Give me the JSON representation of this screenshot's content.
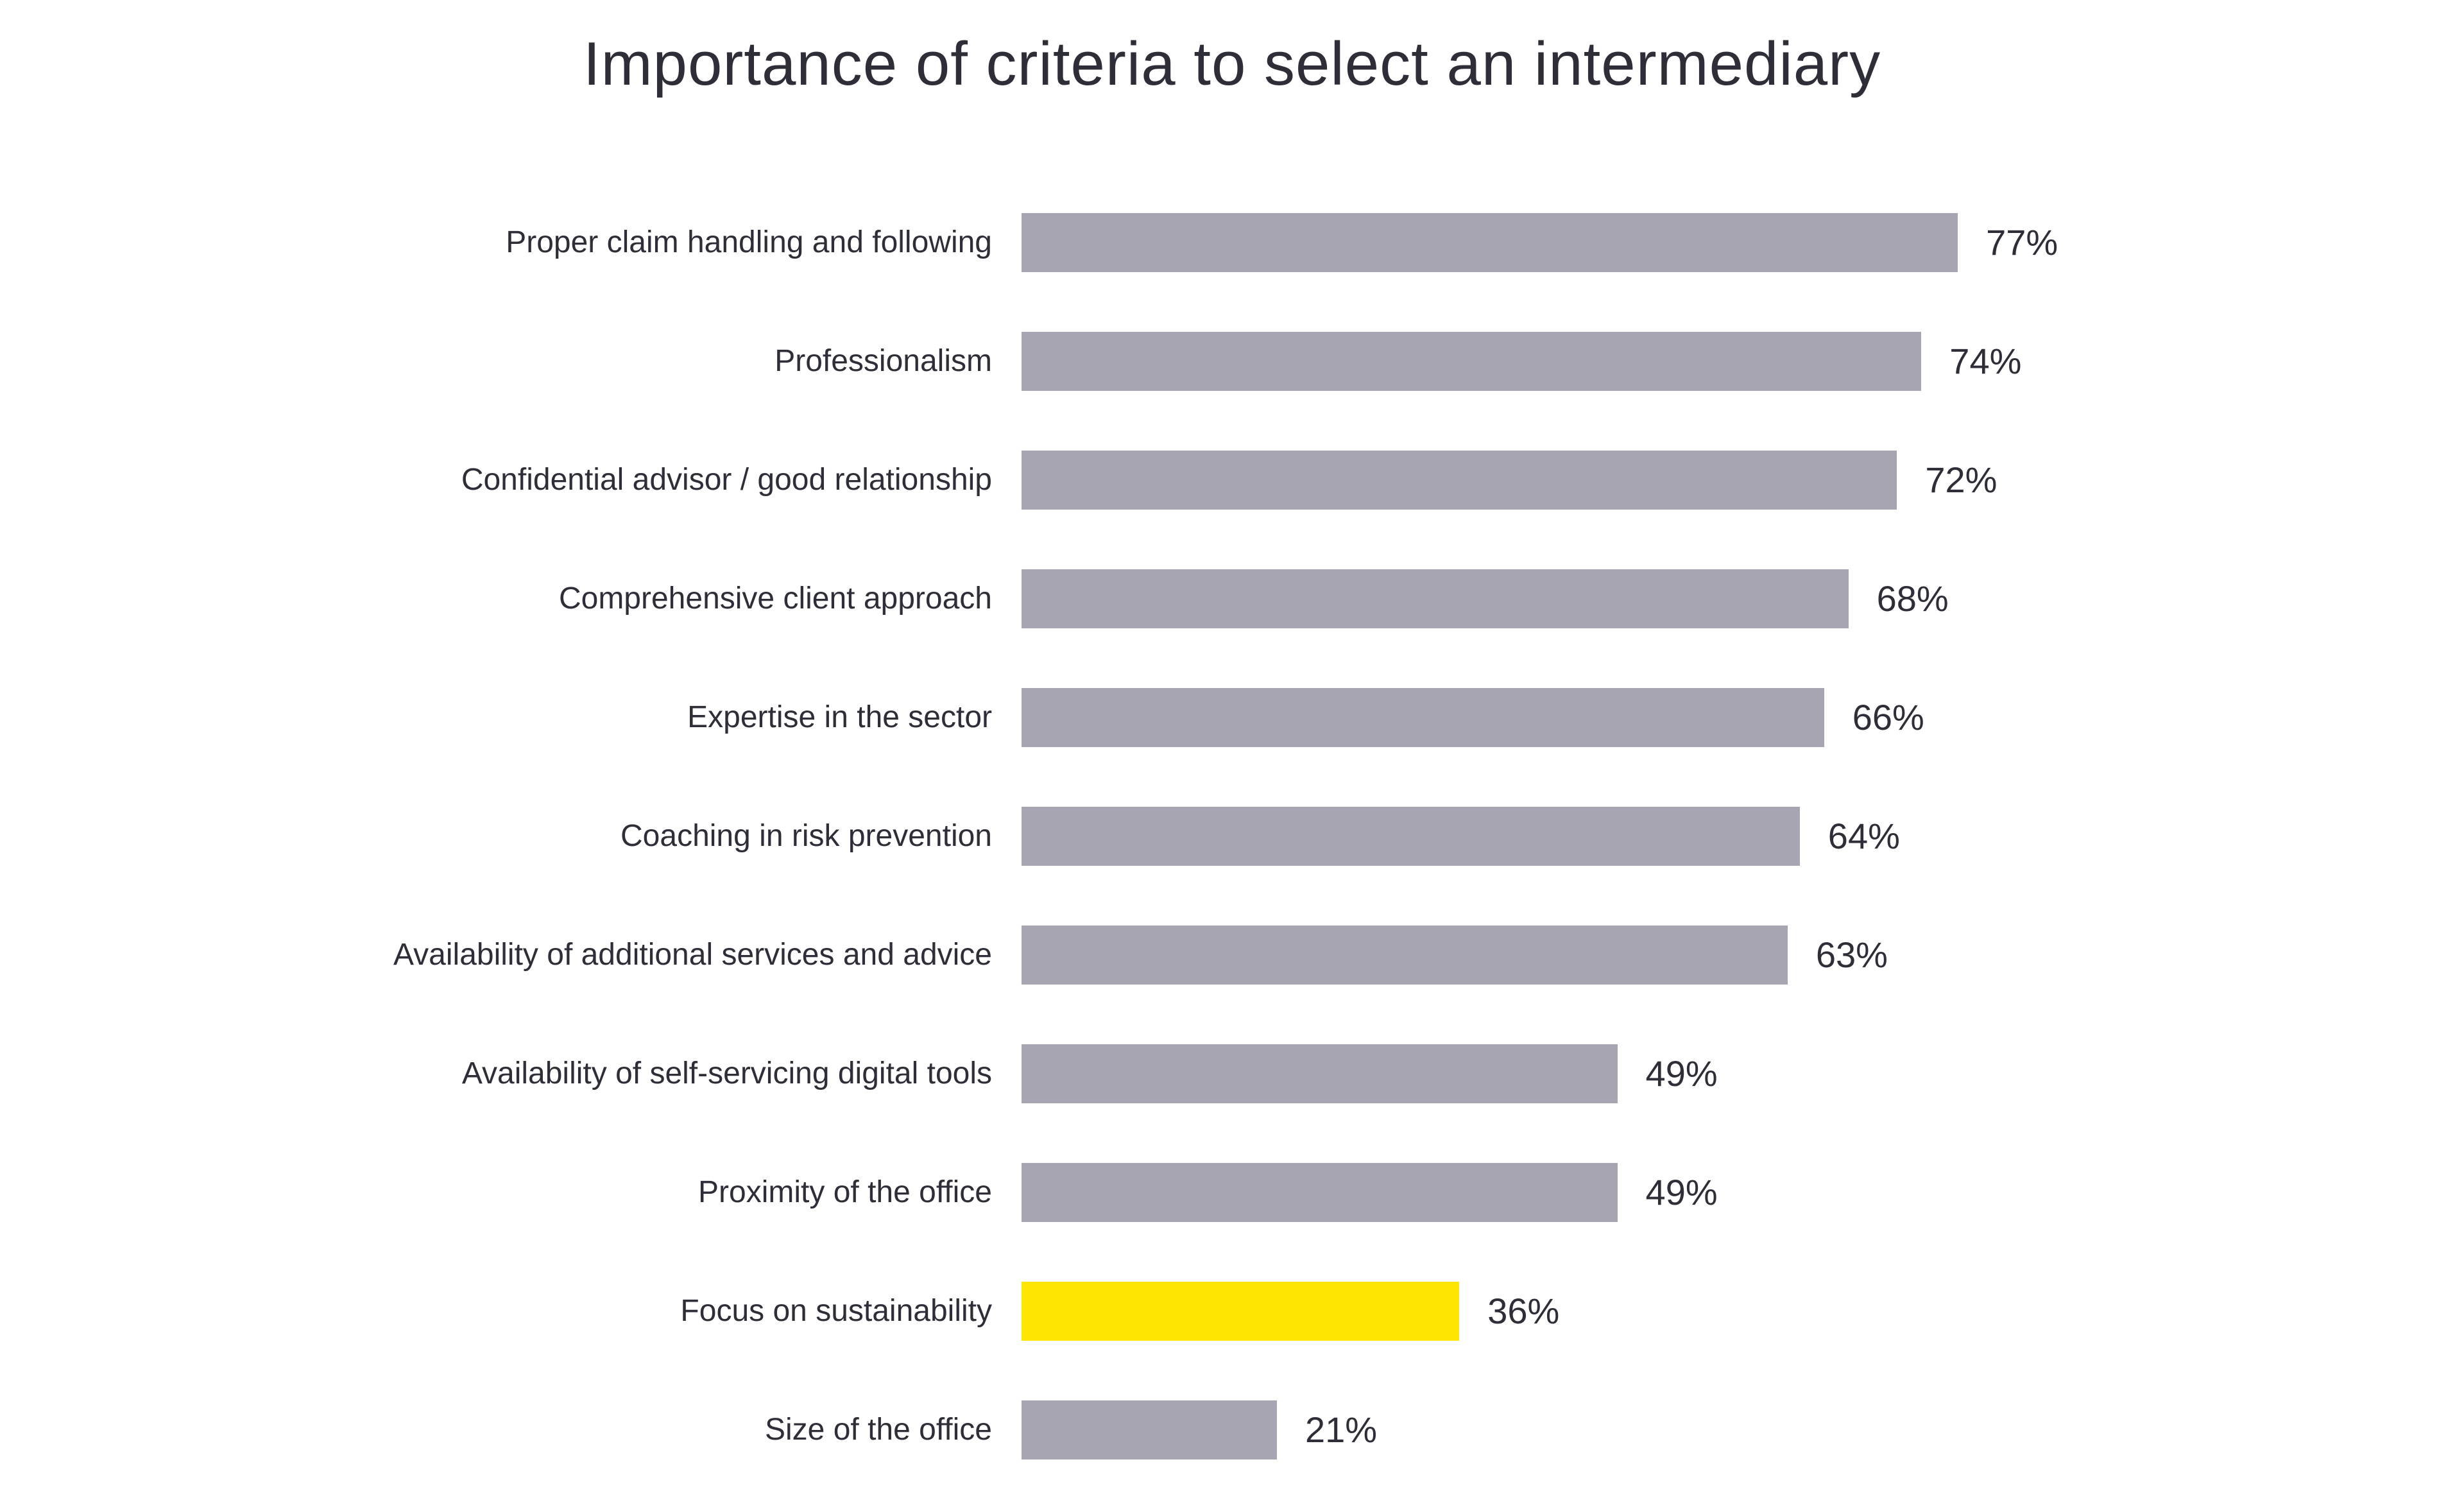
{
  "title": "Importance of criteria to select an intermediary",
  "colors": {
    "background": "#ffffff",
    "bar_default": "#a6a5b1",
    "bar_highlight": "#ffe600",
    "text": "#2e2e38"
  },
  "chart_data": {
    "type": "bar",
    "orientation": "horizontal",
    "title": "Importance of criteria to select an intermediary",
    "unit": "%",
    "xlim": [
      0,
      100
    ],
    "grid": false,
    "legend": false,
    "categories": [
      "Proper claim handling and following",
      "Professionalism",
      "Confidential advisor / good relationship",
      "Comprehensive client approach",
      "Expertise in the sector",
      "Coaching in risk prevention",
      "Availability of additional services and advice",
      "Availability of self-servicing digital tools",
      "Proximity of the office",
      "Focus on sustainability",
      "Size of the office"
    ],
    "values": [
      77,
      74,
      72,
      68,
      66,
      64,
      63,
      49,
      49,
      36,
      21
    ],
    "display_values": [
      "77%",
      "74%",
      "72%",
      "68%",
      "66%",
      "64%",
      "63%",
      "49%",
      "49%",
      "36%",
      "21%"
    ],
    "highlight_index": 9,
    "highlight_category": "Focus on sustainability"
  }
}
